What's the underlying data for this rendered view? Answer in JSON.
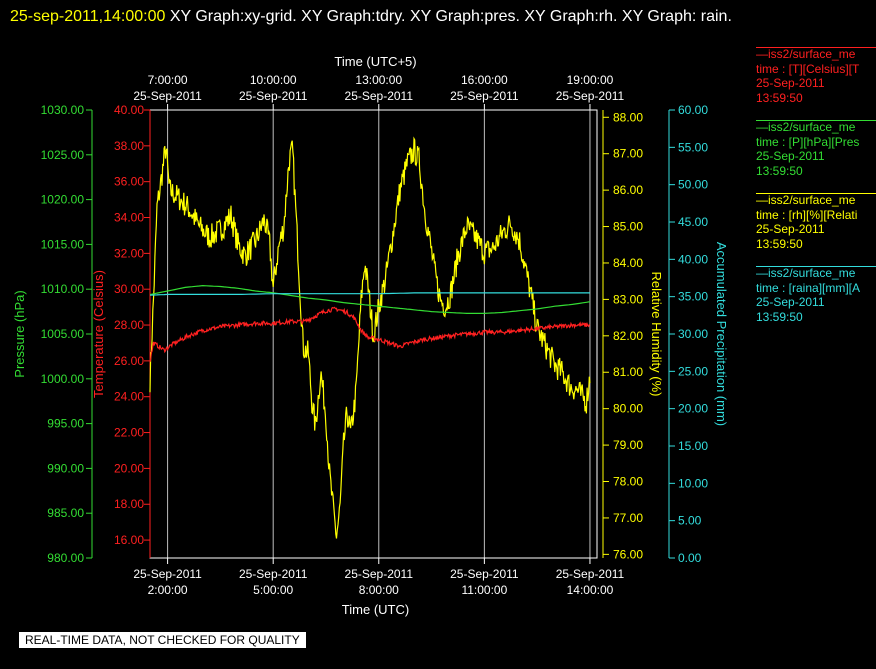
{
  "header": {
    "timestamp": "25-sep-2011,14:00:00",
    "title": "XY Graph:xy-grid.  XY Graph:tdry.  XY Graph:pres.  XY Graph:rh.  XY Graph: rain."
  },
  "notice": "REAL-TIME DATA, NOT CHECKED FOR QUALITY",
  "legend": [
    {
      "line1": "—iss2/surface_me",
      "line2": "time : [T][Celsius][T",
      "line3": "25-Sep-2011",
      "line4": "13:59:50",
      "color": "#ff2020"
    },
    {
      "line1": "—iss2/surface_me",
      "line2": "time : [P][hPa][Pres",
      "line3": "25-Sep-2011",
      "line4": "13:59:50",
      "color": "#33dd33"
    },
    {
      "line1": "—iss2/surface_me",
      "line2": "time : [rh][%][Relati",
      "line3": "25-Sep-2011",
      "line4": "13:59:50",
      "color": "#ffff00"
    },
    {
      "line1": "—iss2/surface_me",
      "line2": "time : [raina][mm][A",
      "line3": "25-Sep-2011",
      "line4": "13:59:50",
      "color": "#33dddd"
    }
  ],
  "chart_data": {
    "type": "line",
    "x_axis_bottom": {
      "title": "Time (UTC)",
      "range_hours": [
        1.5,
        14.2
      ],
      "ticks": [
        {
          "hour": 2,
          "date": "25-Sep-2011",
          "time": "2:00:00"
        },
        {
          "hour": 5,
          "date": "25-Sep-2011",
          "time": "5:00:00"
        },
        {
          "hour": 8,
          "date": "25-Sep-2011",
          "time": "8:00:00"
        },
        {
          "hour": 11,
          "date": "25-Sep-2011",
          "time": "11:00:00"
        },
        {
          "hour": 14,
          "date": "25-Sep-2011",
          "time": "14:00:00"
        }
      ]
    },
    "x_axis_top": {
      "title": "Time (UTC+5)",
      "ticks": [
        {
          "hour": 2,
          "time": "7:00:00",
          "date": "25-Sep-2011"
        },
        {
          "hour": 5,
          "time": "10:00:00",
          "date": "25-Sep-2011"
        },
        {
          "hour": 8,
          "time": "13:00:00",
          "date": "25-Sep-2011"
        },
        {
          "hour": 11,
          "time": "16:00:00",
          "date": "25-Sep-2011"
        },
        {
          "hour": 14,
          "time": "19:00:00",
          "date": "25-Sep-2011"
        }
      ]
    },
    "grid": true,
    "axes": [
      {
        "key": "pres",
        "title": "Pressure (hPa)",
        "color": "#33dd33",
        "range": [
          980,
          1030
        ],
        "ticks": [
          "980.00",
          "985.00",
          "990.00",
          "995.00",
          "1000.00",
          "1005.00",
          "1010.00",
          "1015.00",
          "1020.00",
          "1025.00",
          "1030.00"
        ]
      },
      {
        "key": "tdry",
        "title": "Temperature (Celsius)",
        "color": "#ff2020",
        "range": [
          15,
          40
        ],
        "ticks": [
          "16.00",
          "18.00",
          "20.00",
          "22.00",
          "24.00",
          "26.00",
          "28.00",
          "30.00",
          "32.00",
          "34.00",
          "36.00",
          "38.00",
          "40.00"
        ]
      },
      {
        "key": "rh",
        "title": "Relative Humidity (%)",
        "color": "#ffff00",
        "range": [
          75.9,
          88.2
        ],
        "ticks": [
          "76.00",
          "77.00",
          "78.00",
          "79.00",
          "80.00",
          "81.00",
          "82.00",
          "83.00",
          "84.00",
          "85.00",
          "86.00",
          "87.00",
          "88.00"
        ]
      },
      {
        "key": "rain",
        "title": "Accumulated Precipitation (mm)",
        "color": "#33dddd",
        "range": [
          0,
          60
        ],
        "ticks": [
          "0.00",
          "5.00",
          "10.00",
          "15.00",
          "20.00",
          "25.00",
          "30.00",
          "35.00",
          "40.00",
          "45.00",
          "50.00",
          "55.00",
          "60.00"
        ]
      }
    ],
    "series": [
      {
        "key": "rh",
        "color": "#ffff00",
        "noise": 0.35,
        "points": [
          [
            1.5,
            80.8
          ],
          [
            1.6,
            83.0
          ],
          [
            1.7,
            85.5
          ],
          [
            1.85,
            86.5
          ],
          [
            1.95,
            87.2
          ],
          [
            2.05,
            86.0
          ],
          [
            2.3,
            85.8
          ],
          [
            2.6,
            85.5
          ],
          [
            2.9,
            85.0
          ],
          [
            3.2,
            84.7
          ],
          [
            3.5,
            84.9
          ],
          [
            3.8,
            85.3
          ],
          [
            4.0,
            84.5
          ],
          [
            4.2,
            84.2
          ],
          [
            4.5,
            84.6
          ],
          [
            4.75,
            85.2
          ],
          [
            4.9,
            84.5
          ],
          [
            5.0,
            83.3
          ],
          [
            5.15,
            84.4
          ],
          [
            5.3,
            85.0
          ],
          [
            5.45,
            86.8
          ],
          [
            5.55,
            87.1
          ],
          [
            5.65,
            85.3
          ],
          [
            5.75,
            83.5
          ],
          [
            5.85,
            81.7
          ],
          [
            6.0,
            81.5
          ],
          [
            6.1,
            80.2
          ],
          [
            6.2,
            79.5
          ],
          [
            6.35,
            81.0
          ],
          [
            6.5,
            79.8
          ],
          [
            6.6,
            78.2
          ],
          [
            6.7,
            77.3
          ],
          [
            6.8,
            76.5
          ],
          [
            6.9,
            77.3
          ],
          [
            7.0,
            79.0
          ],
          [
            7.1,
            79.9
          ],
          [
            7.2,
            79.3
          ],
          [
            7.35,
            80.4
          ],
          [
            7.5,
            83.0
          ],
          [
            7.6,
            84.0
          ],
          [
            7.7,
            83.3
          ],
          [
            7.85,
            82.0
          ],
          [
            8.0,
            82.8
          ],
          [
            8.2,
            83.6
          ],
          [
            8.4,
            84.8
          ],
          [
            8.6,
            86.0
          ],
          [
            8.8,
            86.7
          ],
          [
            9.0,
            87.1
          ],
          [
            9.15,
            86.8
          ],
          [
            9.3,
            85.5
          ],
          [
            9.45,
            84.6
          ],
          [
            9.6,
            83.7
          ],
          [
            9.75,
            83.0
          ],
          [
            9.9,
            82.8
          ],
          [
            10.05,
            83.2
          ],
          [
            10.25,
            84.2
          ],
          [
            10.5,
            85.0
          ],
          [
            10.75,
            84.7
          ],
          [
            11.0,
            84.3
          ],
          [
            11.25,
            84.4
          ],
          [
            11.5,
            84.8
          ],
          [
            11.75,
            85.1
          ],
          [
            12.0,
            84.6
          ],
          [
            12.2,
            83.7
          ],
          [
            12.35,
            83.0
          ],
          [
            12.5,
            82.2
          ],
          [
            12.6,
            82.0
          ],
          [
            12.8,
            81.6
          ],
          [
            13.0,
            81.2
          ],
          [
            13.2,
            81.0
          ],
          [
            13.45,
            80.6
          ],
          [
            13.65,
            80.5
          ],
          [
            13.8,
            80.3
          ],
          [
            13.9,
            80.2
          ],
          [
            14.0,
            80.9
          ]
        ]
      },
      {
        "key": "tdry",
        "color": "#ff2020",
        "noise": 0.12,
        "points": [
          [
            1.5,
            26.0
          ],
          [
            1.6,
            27.0
          ],
          [
            1.9,
            26.6
          ],
          [
            2.2,
            27.0
          ],
          [
            2.6,
            27.4
          ],
          [
            3.0,
            27.7
          ],
          [
            3.5,
            27.9
          ],
          [
            4.0,
            28.0
          ],
          [
            4.5,
            28.1
          ],
          [
            5.0,
            28.1
          ],
          [
            5.5,
            28.2
          ],
          [
            5.9,
            28.2
          ],
          [
            6.2,
            28.5
          ],
          [
            6.5,
            28.8
          ],
          [
            6.8,
            28.9
          ],
          [
            7.1,
            28.7
          ],
          [
            7.3,
            28.4
          ],
          [
            7.5,
            27.7
          ],
          [
            7.7,
            27.3
          ],
          [
            8.0,
            27.2
          ],
          [
            8.3,
            27.0
          ],
          [
            8.6,
            26.8
          ],
          [
            8.9,
            27.0
          ],
          [
            9.3,
            27.2
          ],
          [
            9.7,
            27.3
          ],
          [
            10.0,
            27.4
          ],
          [
            10.5,
            27.5
          ],
          [
            11.0,
            27.6
          ],
          [
            11.5,
            27.6
          ],
          [
            12.0,
            27.7
          ],
          [
            12.5,
            27.8
          ],
          [
            13.0,
            27.9
          ],
          [
            13.5,
            28.0
          ],
          [
            14.0,
            28.0
          ]
        ]
      },
      {
        "key": "pres",
        "color": "#33dd33",
        "noise": 0.0,
        "points": [
          [
            1.5,
            1009.4
          ],
          [
            2.0,
            1009.8
          ],
          [
            2.5,
            1010.2
          ],
          [
            3.0,
            1010.4
          ],
          [
            3.5,
            1010.3
          ],
          [
            4.0,
            1010.1
          ],
          [
            4.5,
            1009.8
          ],
          [
            5.0,
            1009.6
          ],
          [
            5.5,
            1009.3
          ],
          [
            6.0,
            1009.0
          ],
          [
            6.5,
            1008.8
          ],
          [
            7.0,
            1008.5
          ],
          [
            7.5,
            1008.3
          ],
          [
            8.0,
            1008.1
          ],
          [
            8.5,
            1007.9
          ],
          [
            9.0,
            1007.7
          ],
          [
            9.5,
            1007.5
          ],
          [
            10.0,
            1007.4
          ],
          [
            10.5,
            1007.3
          ],
          [
            11.0,
            1007.3
          ],
          [
            11.5,
            1007.4
          ],
          [
            12.0,
            1007.6
          ],
          [
            12.5,
            1007.8
          ],
          [
            13.0,
            1008.1
          ],
          [
            13.5,
            1008.3
          ],
          [
            14.0,
            1008.6
          ]
        ]
      },
      {
        "key": "rain",
        "color": "#33dddd",
        "noise": 0.0,
        "points": [
          [
            1.5,
            35.2
          ],
          [
            2.0,
            35.3
          ],
          [
            3.0,
            35.3
          ],
          [
            4.0,
            35.3
          ],
          [
            5.0,
            35.4
          ],
          [
            6.0,
            35.4
          ],
          [
            7.0,
            35.4
          ],
          [
            8.0,
            35.4
          ],
          [
            9.0,
            35.5
          ],
          [
            10.0,
            35.5
          ],
          [
            11.0,
            35.5
          ],
          [
            12.0,
            35.5
          ],
          [
            13.0,
            35.5
          ],
          [
            14.0,
            35.5
          ]
        ]
      }
    ]
  }
}
